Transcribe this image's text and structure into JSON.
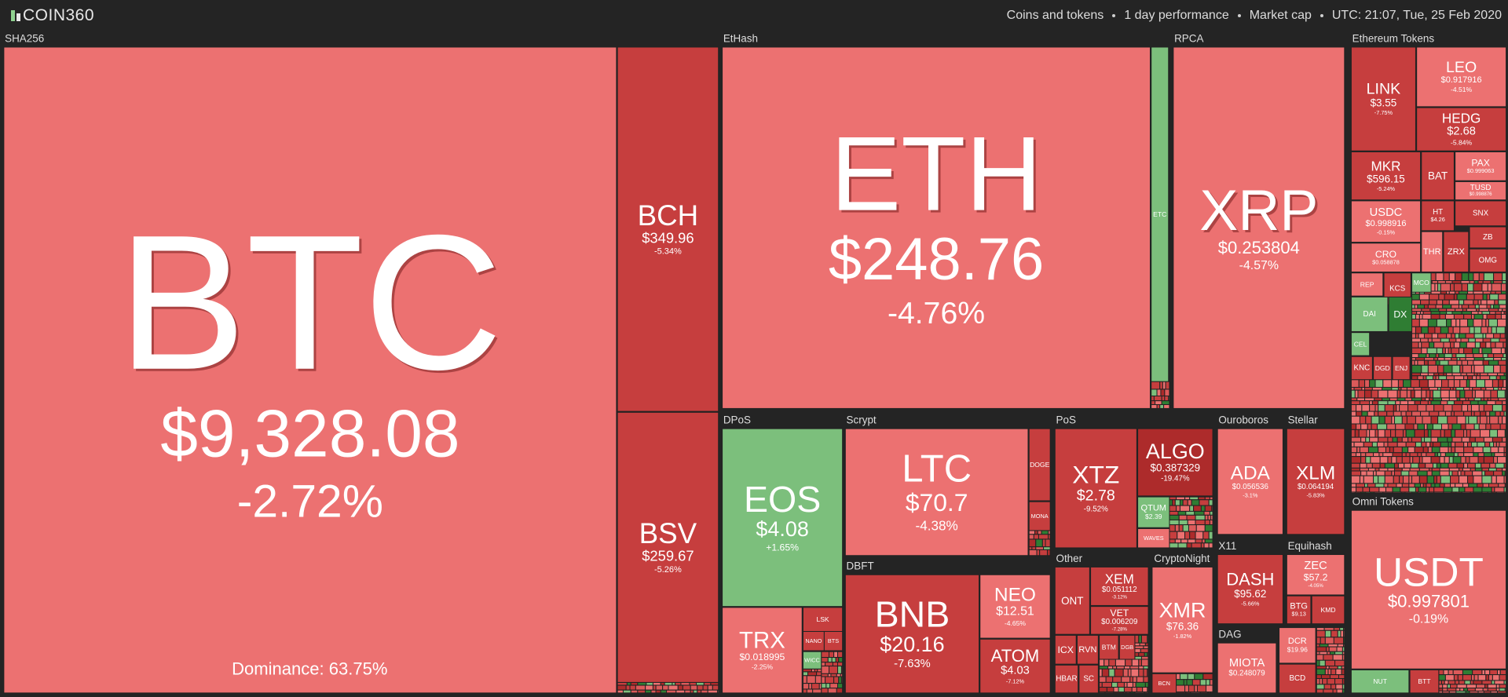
{
  "header": {
    "logo": "COIN360",
    "items": [
      "Coins and tokens",
      "1 day performance",
      "Market cap",
      "UTC: 21:07, Tue, 25 Feb 2020"
    ]
  },
  "groups": [
    {
      "label": "SHA256",
      "note": "Dominance: 63.75%",
      "tiles": [
        {
          "symbol": "BTC",
          "price": "$9,328.08",
          "change": "-2.72%"
        },
        {
          "symbol": "BCH",
          "price": "$349.96",
          "change": "-5.34%"
        },
        {
          "symbol": "BSV",
          "price": "$259.67",
          "change": "-5.26%"
        }
      ]
    },
    {
      "label": "EtHash",
      "tiles": [
        {
          "symbol": "ETH",
          "price": "$248.76",
          "change": "-4.76%"
        },
        {
          "symbol": "ETC"
        }
      ]
    },
    {
      "label": "RPCA",
      "tiles": [
        {
          "symbol": "XRP",
          "price": "$0.253804",
          "change": "-4.57%"
        }
      ]
    },
    {
      "label": "Ethereum Tokens",
      "tiles": [
        {
          "symbol": "LINK",
          "price": "$3.55",
          "change": "-7.75%"
        },
        {
          "symbol": "LEO",
          "price": "$0.917916",
          "change": "-4.51%"
        },
        {
          "symbol": "HEDG",
          "price": "$2.68",
          "change": "-5.84%"
        },
        {
          "symbol": "MKR",
          "price": "$596.15",
          "change": "-5.24%"
        },
        {
          "symbol": "BAT"
        },
        {
          "symbol": "PAX",
          "price": "$0.999063"
        },
        {
          "symbol": "TUSD",
          "price": "$0.998876"
        },
        {
          "symbol": "USDC",
          "price": "$0.998916",
          "change": "-0.15%"
        },
        {
          "symbol": "HT",
          "price": "$4.26"
        },
        {
          "symbol": "SNX"
        },
        {
          "symbol": "CRO",
          "price": "$0.058878"
        },
        {
          "symbol": "THR"
        },
        {
          "symbol": "ZRX"
        },
        {
          "symbol": "ZB"
        },
        {
          "symbol": "OMG"
        },
        {
          "symbol": "REP"
        },
        {
          "symbol": "KCS"
        },
        {
          "symbol": "MCO"
        },
        {
          "symbol": "DAI"
        },
        {
          "symbol": "DX"
        },
        {
          "symbol": "CEL"
        },
        {
          "symbol": "KNC"
        },
        {
          "symbol": "DGD"
        },
        {
          "symbol": "ENJ"
        }
      ]
    },
    {
      "label": "Omni Tokens",
      "tiles": [
        {
          "symbol": "USDT",
          "price": "$0.997801",
          "change": "-0.19%"
        },
        {
          "symbol": "NUT"
        },
        {
          "symbol": "BTT"
        }
      ]
    },
    {
      "label": "DPoS",
      "tiles": [
        {
          "symbol": "EOS",
          "price": "$4.08",
          "change": "+1.65%"
        },
        {
          "symbol": "TRX",
          "price": "$0.018995",
          "change": "-2.25%"
        },
        {
          "symbol": "LSK"
        },
        {
          "symbol": "NANO"
        },
        {
          "symbol": "BTS"
        },
        {
          "symbol": "WICC"
        }
      ]
    },
    {
      "label": "Scrypt",
      "tiles": [
        {
          "symbol": "LTC",
          "price": "$70.7",
          "change": "-4.38%"
        },
        {
          "symbol": "DOGE"
        },
        {
          "symbol": "MONA"
        }
      ]
    },
    {
      "label": "DBFT",
      "tiles": [
        {
          "symbol": "BNB",
          "price": "$20.16",
          "change": "-7.63%"
        },
        {
          "symbol": "NEO",
          "price": "$12.51",
          "change": "-4.65%"
        },
        {
          "symbol": "ATOM",
          "price": "$4.03",
          "change": "-7.12%"
        }
      ]
    },
    {
      "label": "PoS",
      "tiles": [
        {
          "symbol": "XTZ",
          "price": "$2.78",
          "change": "-9.52%"
        },
        {
          "symbol": "ALGO",
          "price": "$0.387329",
          "change": "-19.47%"
        },
        {
          "symbol": "QTUM",
          "price": "$2.39"
        },
        {
          "symbol": "WAVES"
        }
      ]
    },
    {
      "label": "Other",
      "tiles": [
        {
          "symbol": "ONT"
        },
        {
          "symbol": "XEM",
          "price": "$0.051112",
          "change": "-3.12%"
        },
        {
          "symbol": "VET",
          "price": "$0.006209",
          "change": "-7.28%"
        },
        {
          "symbol": "ICX"
        },
        {
          "symbol": "RVN"
        },
        {
          "symbol": "BTM"
        },
        {
          "symbol": "DGB"
        },
        {
          "symbol": "HBAR"
        },
        {
          "symbol": "SC"
        }
      ]
    },
    {
      "label": "CryptoNight",
      "tiles": [
        {
          "symbol": "XMR",
          "price": "$76.36",
          "change": "-1.82%"
        },
        {
          "symbol": "BCN"
        }
      ]
    },
    {
      "label": "Ouroboros",
      "tiles": [
        {
          "symbol": "ADA",
          "price": "$0.056536",
          "change": "-3.1%"
        }
      ]
    },
    {
      "label": "Stellar",
      "tiles": [
        {
          "symbol": "XLM",
          "price": "$0.064194",
          "change": "-5.83%"
        }
      ]
    },
    {
      "label": "X11",
      "tiles": [
        {
          "symbol": "DASH",
          "price": "$95.62",
          "change": "-5.66%"
        }
      ]
    },
    {
      "label": "Equihash",
      "tiles": [
        {
          "symbol": "ZEC",
          "price": "$57.2",
          "change": "-4.05%"
        },
        {
          "symbol": "BTG",
          "price": "$9.13"
        },
        {
          "symbol": "KMD"
        }
      ]
    },
    {
      "label": "DAG",
      "tiles": [
        {
          "symbol": "MIOTA",
          "price": "$0.248079"
        }
      ]
    },
    {
      "tiles": [
        {
          "symbol": "DCR",
          "price": "$19.96"
        },
        {
          "symbol": "BCD"
        }
      ]
    }
  ]
}
